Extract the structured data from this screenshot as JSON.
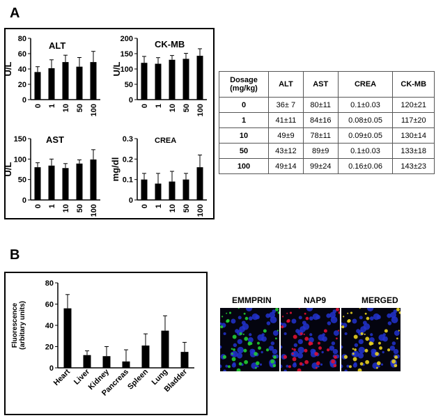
{
  "panel_a_label": "A",
  "panel_b_label": "B",
  "chart_data": [
    {
      "type": "bar",
      "id": "alt",
      "title": "ALT",
      "ylabel": "U/L",
      "categories": [
        "0",
        "1",
        "10",
        "50",
        "100"
      ],
      "values": [
        36,
        41,
        49,
        43,
        49
      ],
      "errors": [
        7,
        11,
        9,
        12,
        14
      ],
      "ylim": [
        0,
        80
      ],
      "yticks": [
        "0",
        "20",
        "40",
        "60",
        "80"
      ]
    },
    {
      "type": "bar",
      "id": "ckmb",
      "title": "CK-MB",
      "ylabel": "U/L",
      "categories": [
        "0",
        "1",
        "10",
        "50",
        "100"
      ],
      "values": [
        120,
        117,
        130,
        133,
        143
      ],
      "errors": [
        21,
        20,
        14,
        18,
        23
      ],
      "ylim": [
        0,
        200
      ],
      "yticks": [
        "0",
        "50",
        "100",
        "150",
        "200"
      ]
    },
    {
      "type": "bar",
      "id": "ast",
      "title": "AST",
      "ylabel": "U/L",
      "categories": [
        "0",
        "1",
        "10",
        "50",
        "100"
      ],
      "values": [
        80,
        84,
        78,
        89,
        99
      ],
      "errors": [
        11,
        16,
        11,
        9,
        24
      ],
      "ylim": [
        0,
        150
      ],
      "yticks": [
        "0",
        "50",
        "100",
        "150"
      ]
    },
    {
      "type": "bar",
      "id": "crea",
      "title": "CREA",
      "ylabel": "mg/dl",
      "categories": [
        "0",
        "1",
        "10",
        "50",
        "100"
      ],
      "values": [
        0.1,
        0.08,
        0.09,
        0.1,
        0.16
      ],
      "errors": [
        0.03,
        0.05,
        0.05,
        0.03,
        0.06
      ],
      "ylim": [
        0,
        0.3
      ],
      "yticks": [
        "0",
        "0.1",
        "0.2",
        "0.3"
      ]
    },
    {
      "type": "bar",
      "id": "fluor",
      "title": "",
      "ylabel": "Fluorescence\n(arbitary units)",
      "categories": [
        "Heart",
        "Liver",
        "Kidney",
        "Pancreas",
        "Spleen",
        "Lung",
        "Bladder"
      ],
      "values": [
        56,
        12,
        11,
        6,
        21,
        35,
        15
      ],
      "errors": [
        13,
        4,
        9,
        11,
        11,
        14,
        9
      ],
      "ylim": [
        0,
        80
      ],
      "yticks": [
        "0",
        "20",
        "40",
        "60",
        "80"
      ]
    },
    {
      "type": "table",
      "id": "dosage-table",
      "columns": [
        "Dosage\n(mg/kg)",
        "ALT",
        "AST",
        "CREA",
        "CK-MB"
      ],
      "rows": [
        [
          "0",
          "36± 7",
          "80±11",
          "0.1±0.03",
          "120±21"
        ],
        [
          "1",
          "41±11",
          "84±16",
          "0.08±0.05",
          "117±20"
        ],
        [
          "10",
          "49±9",
          "78±11",
          "0.09±0.05",
          "130±14"
        ],
        [
          "50",
          "43±12",
          "89±9",
          "0.1±0.03",
          "133±18"
        ],
        [
          "100",
          "49±14",
          "99±24",
          "0.16±0.06",
          "143±23"
        ]
      ]
    }
  ],
  "micrographs": {
    "labels": [
      "EMMPRIN",
      "NAP9",
      "MERGED"
    ],
    "colors": [
      "#22cc33",
      "#dd1133",
      "#e8d020"
    ],
    "nuclei_color": "#2233cc"
  }
}
